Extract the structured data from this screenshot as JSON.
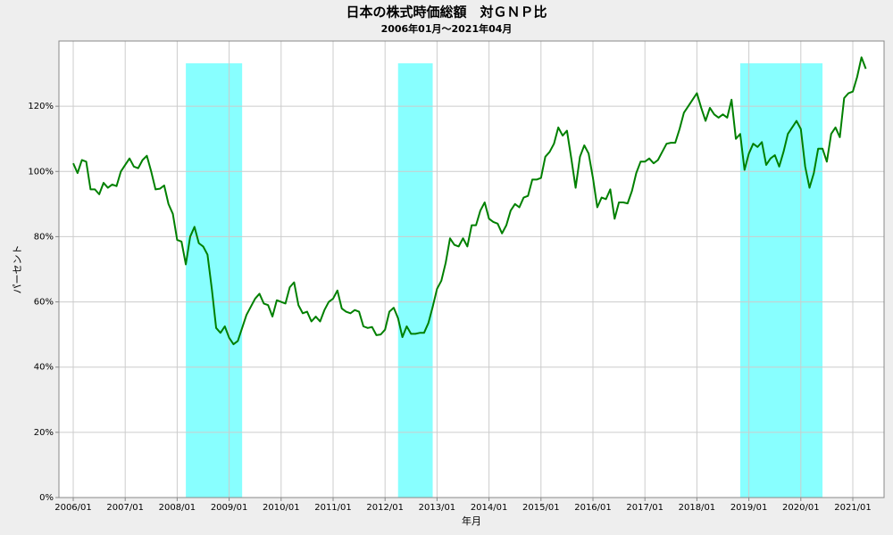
{
  "chart_data": {
    "type": "line",
    "title": "日本の株式時価総額　対ＧＮＰ比",
    "subtitle": "2006年01月～2021年04月",
    "x_label": "年月",
    "y_label": "パーセント",
    "categories": [
      "2006/01",
      null,
      null,
      null,
      null,
      null,
      null,
      null,
      null,
      null,
      null,
      null,
      "2007/01",
      null,
      null,
      null,
      null,
      null,
      null,
      null,
      null,
      null,
      null,
      null,
      "2008/01",
      null,
      null,
      null,
      null,
      null,
      null,
      null,
      null,
      null,
      null,
      null,
      "2009/01",
      null,
      null,
      null,
      null,
      null,
      null,
      null,
      null,
      null,
      null,
      null,
      "2010/01",
      null,
      null,
      null,
      null,
      null,
      null,
      null,
      null,
      null,
      null,
      null,
      "2011/01",
      null,
      null,
      null,
      null,
      null,
      null,
      null,
      null,
      null,
      null,
      null,
      "2012/01",
      null,
      null,
      null,
      null,
      null,
      null,
      null,
      null,
      null,
      null,
      null,
      "2013/01",
      null,
      null,
      null,
      null,
      null,
      null,
      null,
      null,
      null,
      null,
      null,
      "2014/01",
      null,
      null,
      null,
      null,
      null,
      null,
      null,
      null,
      null,
      null,
      null,
      "2015/01",
      null,
      null,
      null,
      null,
      null,
      null,
      null,
      null,
      null,
      null,
      null,
      "2016/01",
      null,
      null,
      null,
      null,
      null,
      null,
      null,
      null,
      null,
      null,
      null,
      "2017/01",
      null,
      null,
      null,
      null,
      null,
      null,
      null,
      null,
      null,
      null,
      null,
      "2018/01",
      null,
      null,
      null,
      null,
      null,
      null,
      null,
      null,
      null,
      null,
      null,
      "2019/01",
      null,
      null,
      null,
      null,
      null,
      null,
      null,
      null,
      null,
      null,
      null,
      "2020/01",
      null,
      null,
      null,
      null,
      null,
      null,
      null,
      null,
      null,
      null,
      null,
      "2021/01",
      null,
      null,
      null
    ],
    "values": [
      102.5,
      99.5,
      103.5,
      103,
      94.5,
      94.5,
      93,
      96.5,
      95,
      96,
      95.5,
      100,
      102,
      104,
      101.5,
      101,
      103.5,
      104.8,
      100,
      94.5,
      94.7,
      95.7,
      90,
      87,
      79,
      78.5,
      71.5,
      80,
      83,
      78,
      77,
      74.5,
      64,
      52,
      50.5,
      52.5,
      49,
      47,
      48,
      52,
      56,
      58.5,
      61,
      62.5,
      59.5,
      59,
      55.5,
      60.5,
      60,
      59.5,
      64.5,
      66,
      59,
      56.5,
      57,
      54,
      55.5,
      54,
      57.5,
      60,
      61,
      63.5,
      58,
      57,
      56.5,
      57.5,
      57,
      52.5,
      52,
      52.3,
      49.8,
      50,
      51.5,
      57,
      58.2,
      55,
      49.2,
      52.5,
      50.2,
      50.2,
      50.5,
      50.5,
      53.5,
      58.5,
      64,
      66.5,
      72,
      79.5,
      77.5,
      77,
      79.5,
      77,
      83.5,
      83.5,
      88,
      90.5,
      85.5,
      84.5,
      84,
      81,
      83.5,
      88,
      90,
      89,
      92,
      92.5,
      97.5,
      97.5,
      98,
      104.5,
      106,
      108.5,
      113.5,
      111,
      112.5,
      104,
      95,
      104.5,
      108,
      105.5,
      98,
      89,
      92,
      91.5,
      94.5,
      85.5,
      90.5,
      90.5,
      90.2,
      94,
      99.5,
      103,
      103,
      104,
      102.5,
      103.5,
      106,
      108.5,
      108.8,
      108.8,
      113,
      118,
      120,
      122,
      124,
      119.5,
      115.5,
      119.5,
      117.5,
      116.5,
      117.5,
      116.5,
      122,
      110,
      111.5,
      100.5,
      105.5,
      108.5,
      107.5,
      109,
      102,
      104,
      105,
      101.5,
      106,
      111.5,
      113.5,
      115.5,
      113,
      101.5,
      95,
      99.5,
      107,
      107,
      103,
      111.5,
      113.5,
      110.5,
      122.5,
      124,
      124.5,
      129,
      135,
      131.5
    ],
    "color": "#008000",
    "shaded": [
      [
        26,
        39
      ],
      [
        75,
        83
      ],
      [
        154,
        173
      ]
    ],
    "shade_color": "#88ffff",
    "ylim": [
      0,
      140
    ],
    "yticks": [
      {
        "value": 0,
        "label": "0%"
      },
      {
        "value": 20,
        "label": "20%"
      },
      {
        "value": 40,
        "label": "40%"
      },
      {
        "value": 60,
        "label": "60%"
      },
      {
        "value": 80,
        "label": "80%"
      },
      {
        "value": 100,
        "label": "100%"
      },
      {
        "value": 120,
        "label": "120%"
      }
    ],
    "grid": true
  }
}
